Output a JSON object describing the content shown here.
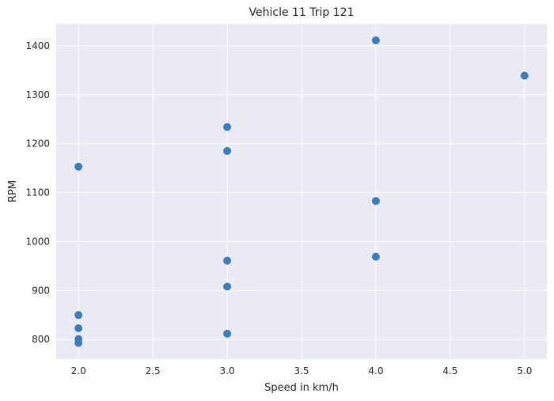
{
  "chart_data": {
    "type": "scatter",
    "title": "Vehicle 11 Trip 121",
    "xlabel": "Speed in km/h",
    "ylabel": "RPM",
    "xlim": [
      1.85,
      5.15
    ],
    "ylim": [
      760,
      1445
    ],
    "xticks": [
      2.0,
      2.5,
      3.0,
      3.5,
      4.0,
      4.5,
      5.0
    ],
    "xtick_labels": [
      "2.0",
      "2.5",
      "3.0",
      "3.5",
      "4.0",
      "4.5",
      "5.0"
    ],
    "yticks": [
      800,
      900,
      1000,
      1100,
      1200,
      1300,
      1400
    ],
    "ytick_labels": [
      "800",
      "900",
      "1000",
      "1100",
      "1200",
      "1300",
      "1400"
    ],
    "grid": true,
    "legend": false,
    "series": [
      {
        "x": [
          2,
          2,
          2,
          2,
          2,
          3,
          3,
          3,
          3,
          3,
          4,
          4,
          4,
          5
        ],
        "y": [
          1153,
          850,
          823,
          801,
          793,
          1234,
          1185,
          961,
          908,
          812,
          1411,
          1083,
          969,
          1339
        ]
      }
    ],
    "colors": {
      "background": "#EAEAF2",
      "grid": "#FFFFFF",
      "marker": "#3A7DBD",
      "text": "#262626"
    }
  }
}
